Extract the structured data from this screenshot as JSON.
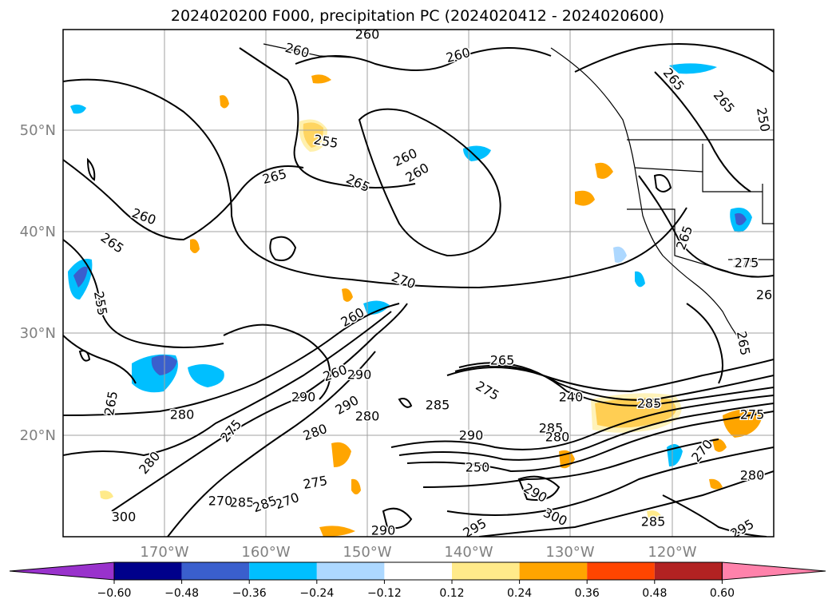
{
  "title": "2024020200 F000, precipitation PC (2024020412 - 2024020600)",
  "map": {
    "lat_labels": [
      "50°N",
      "40°N",
      "30°N",
      "20°N"
    ],
    "lon_labels": [
      "170°W",
      "160°W",
      "150°W",
      "140°W",
      "130°W",
      "120°W"
    ],
    "contour_labels": [
      "260",
      "260",
      "260",
      "255",
      "260",
      "265",
      "265",
      "260",
      "265",
      "265",
      "260",
      "265",
      "255",
      "270",
      "275",
      "260",
      "290",
      "280",
      "280",
      "285",
      "290",
      "280",
      "290",
      "285",
      "270",
      "275",
      "300",
      "285",
      "265",
      "260",
      "275",
      "240",
      "285",
      "290",
      "250",
      "280",
      "285",
      "275",
      "300",
      "285",
      "290",
      "270",
      "280",
      "295",
      "265",
      "275",
      "265",
      "250",
      "265",
      "275",
      "26",
      "290",
      "295",
      "280",
      "270"
    ],
    "colors": {
      "contour": "#000000",
      "grid": "#a0a0a0",
      "coastline": "#000000"
    }
  },
  "colorbar": {
    "ticks": [
      "−0.60",
      "−0.48",
      "−0.36",
      "−0.24",
      "−0.12",
      "0.12",
      "0.24",
      "0.36",
      "0.48",
      "0.60"
    ],
    "colors": [
      "#9932cc",
      "#00008b",
      "#3a5fcd",
      "#00bfff",
      "#add8ff",
      "#ffffff",
      "#ffea8a",
      "#ffa500",
      "#ff4500",
      "#b22222",
      "#ff82ab"
    ]
  }
}
